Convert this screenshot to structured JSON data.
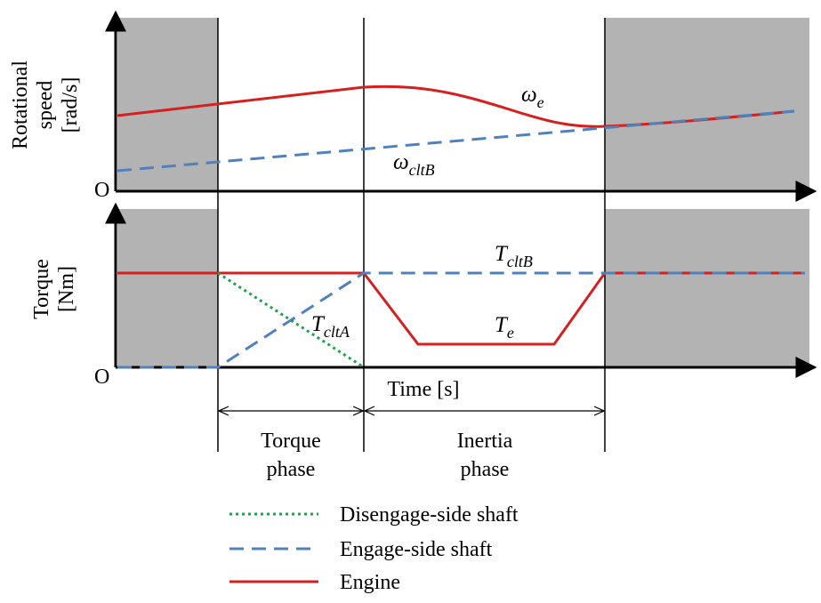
{
  "axes": {
    "top": {
      "y_label": [
        "Rotational",
        "speed",
        "[rad/s]"
      ],
      "origin": "O"
    },
    "bottom": {
      "y_label": [
        "Torque",
        "[Nm]"
      ],
      "origin": "O",
      "x_label": "Time [s]"
    }
  },
  "curve_labels": [
    {
      "symbol": "ω",
      "subscript": "e"
    },
    {
      "symbol": "ω",
      "subscript": "cltB"
    },
    {
      "symbol": "T",
      "subscript": "cltB"
    },
    {
      "symbol": "T",
      "subscript": "e"
    },
    {
      "symbol": "T",
      "subscript": "cltA"
    }
  ],
  "phases": [
    {
      "label": [
        "Torque",
        "phase"
      ]
    },
    {
      "label": [
        "Inertia",
        "phase"
      ]
    }
  ],
  "legend": [
    "Disengage-side shaft",
    "Engage-side shaft",
    "Engine"
  ]
}
